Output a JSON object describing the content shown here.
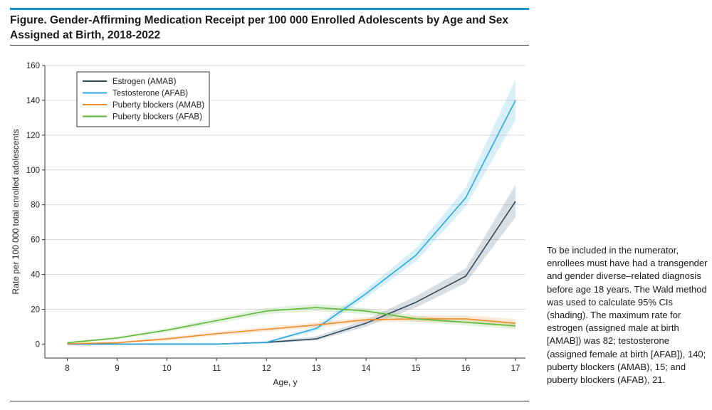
{
  "figure": {
    "title": "Figure. Gender-Affirming Medication Receipt per 100 000 Enrolled Adolescents by Age and Sex Assigned at Birth, 2018-2022",
    "note": "To be included in the numerator, enrollees must have had a transgender and gender diverse–related diagnosis before age 18 years. The Wald method was used to calculate 95% CIs (shading). The maximum rate for estrogen (assigned male at birth [AMAB]) was 82; testosterone (assigned female at birth [AFAB]), 140; puberty blockers (AMAB), 15; and puberty blockers (AFAB), 21."
  },
  "colors": {
    "accent_rule": "#1b8fc8",
    "estrogen": "#2c4a5e",
    "testosterone": "#29a8df",
    "pb_amab": "#f28c28",
    "pb_afab": "#5cb838",
    "grid": "#d9d9d9"
  },
  "chart_data": {
    "type": "line",
    "xlabel": "Age, y",
    "ylabel": "Rate per 100 000 total enrolled adolescents",
    "x": [
      8,
      9,
      10,
      11,
      12,
      13,
      14,
      15,
      16,
      17
    ],
    "xlim": [
      7.55,
      17.2
    ],
    "ylim": [
      -8,
      160
    ],
    "yticks": [
      0,
      20,
      40,
      60,
      80,
      100,
      120,
      140,
      160
    ],
    "xticks": [
      8,
      9,
      10,
      11,
      12,
      13,
      14,
      15,
      16,
      17
    ],
    "grid": true,
    "legend_position": "top-left",
    "series": [
      {
        "name": "Estrogen (AMAB)",
        "color": "#2c4a5e",
        "values": [
          0,
          0,
          0,
          0,
          1,
          3,
          12,
          24,
          39,
          82
        ],
        "lower": [
          0,
          0,
          0,
          0,
          0.5,
          2,
          10,
          21,
          35,
          73
        ],
        "upper": [
          0,
          0,
          0,
          0,
          1.5,
          4.5,
          14,
          27.5,
          43.5,
          91.5
        ]
      },
      {
        "name": "Testosterone (AFAB)",
        "color": "#29a8df",
        "values": [
          0,
          0,
          0,
          0,
          1,
          9,
          29,
          51,
          84,
          140
        ],
        "lower": [
          0,
          0,
          0,
          0,
          0.5,
          7.5,
          26.5,
          47.5,
          79,
          129
        ],
        "upper": [
          0,
          0,
          0,
          0,
          1.5,
          10.5,
          31.5,
          55,
          90,
          152
        ]
      },
      {
        "name": "Puberty blockers (AMAB)",
        "color": "#f28c28",
        "values": [
          0.2,
          0.8,
          3,
          6,
          8.5,
          11,
          14,
          14.5,
          14.5,
          12
        ],
        "lower": [
          0,
          0.3,
          2,
          4.8,
          7.2,
          9.5,
          12.5,
          12.8,
          12.5,
          9.5
        ],
        "upper": [
          0.5,
          1.3,
          4,
          7.2,
          9.8,
          12.5,
          15.5,
          16.3,
          16.5,
          14.5
        ]
      },
      {
        "name": "Puberty blockers (AFAB)",
        "color": "#5cb838",
        "values": [
          0.8,
          3.5,
          8,
          13.5,
          19,
          21,
          19,
          14.5,
          12.5,
          10.5
        ],
        "lower": [
          0.4,
          2.7,
          6.8,
          12,
          17.2,
          19,
          17.2,
          12.8,
          10.8,
          8.5
        ],
        "upper": [
          1.2,
          4.3,
          9.2,
          15,
          20.8,
          23,
          20.8,
          16.2,
          14.2,
          12.5
        ]
      }
    ]
  }
}
